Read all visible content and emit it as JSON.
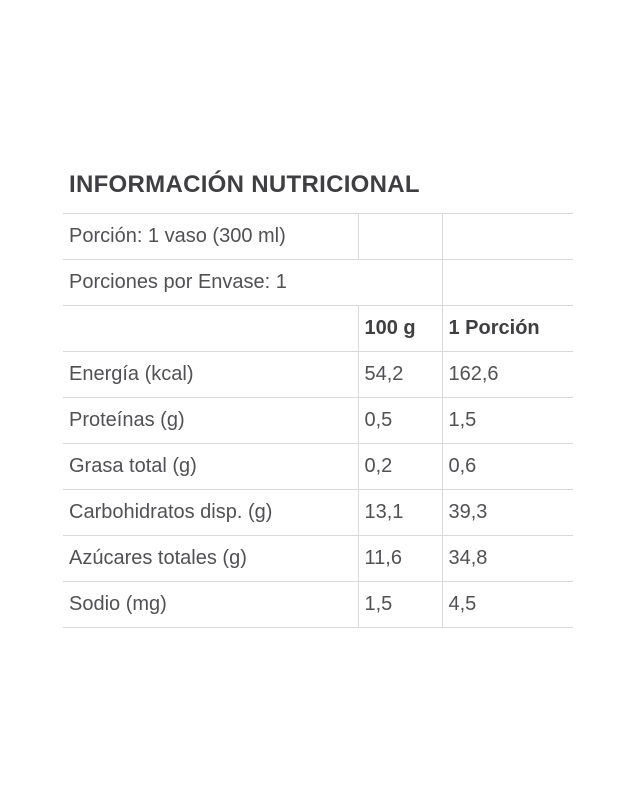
{
  "title": "INFORMACIÓN NUTRICIONAL",
  "info": {
    "portion": "Porción: 1 vaso (300 ml)",
    "servings_per_container": "Porciones por Envase: 1"
  },
  "columns": {
    "per_100g": "100 g",
    "per_portion": "1 Porción"
  },
  "nutrients": [
    {
      "label": "Energía (kcal)",
      "per_100g": "54,2",
      "per_portion": "162,6"
    },
    {
      "label": "Proteínas (g)",
      "per_100g": "0,5",
      "per_portion": "1,5"
    },
    {
      "label": "Grasa total (g)",
      "per_100g": "0,2",
      "per_portion": "0,6"
    },
    {
      "label": "Carbohidratos disp. (g)",
      "per_100g": "13,1",
      "per_portion": "39,3"
    },
    {
      "label": "Azúcares totales (g)",
      "per_100g": "11,6",
      "per_portion": "34,8"
    },
    {
      "label": "Sodio (mg)",
      "per_100g": "1,5",
      "per_portion": "4,5"
    }
  ],
  "colors": {
    "title-color": "#3f3f41",
    "text-color": "#515154",
    "border-color": "#d9d9da",
    "bg-color": "#ffffff"
  }
}
